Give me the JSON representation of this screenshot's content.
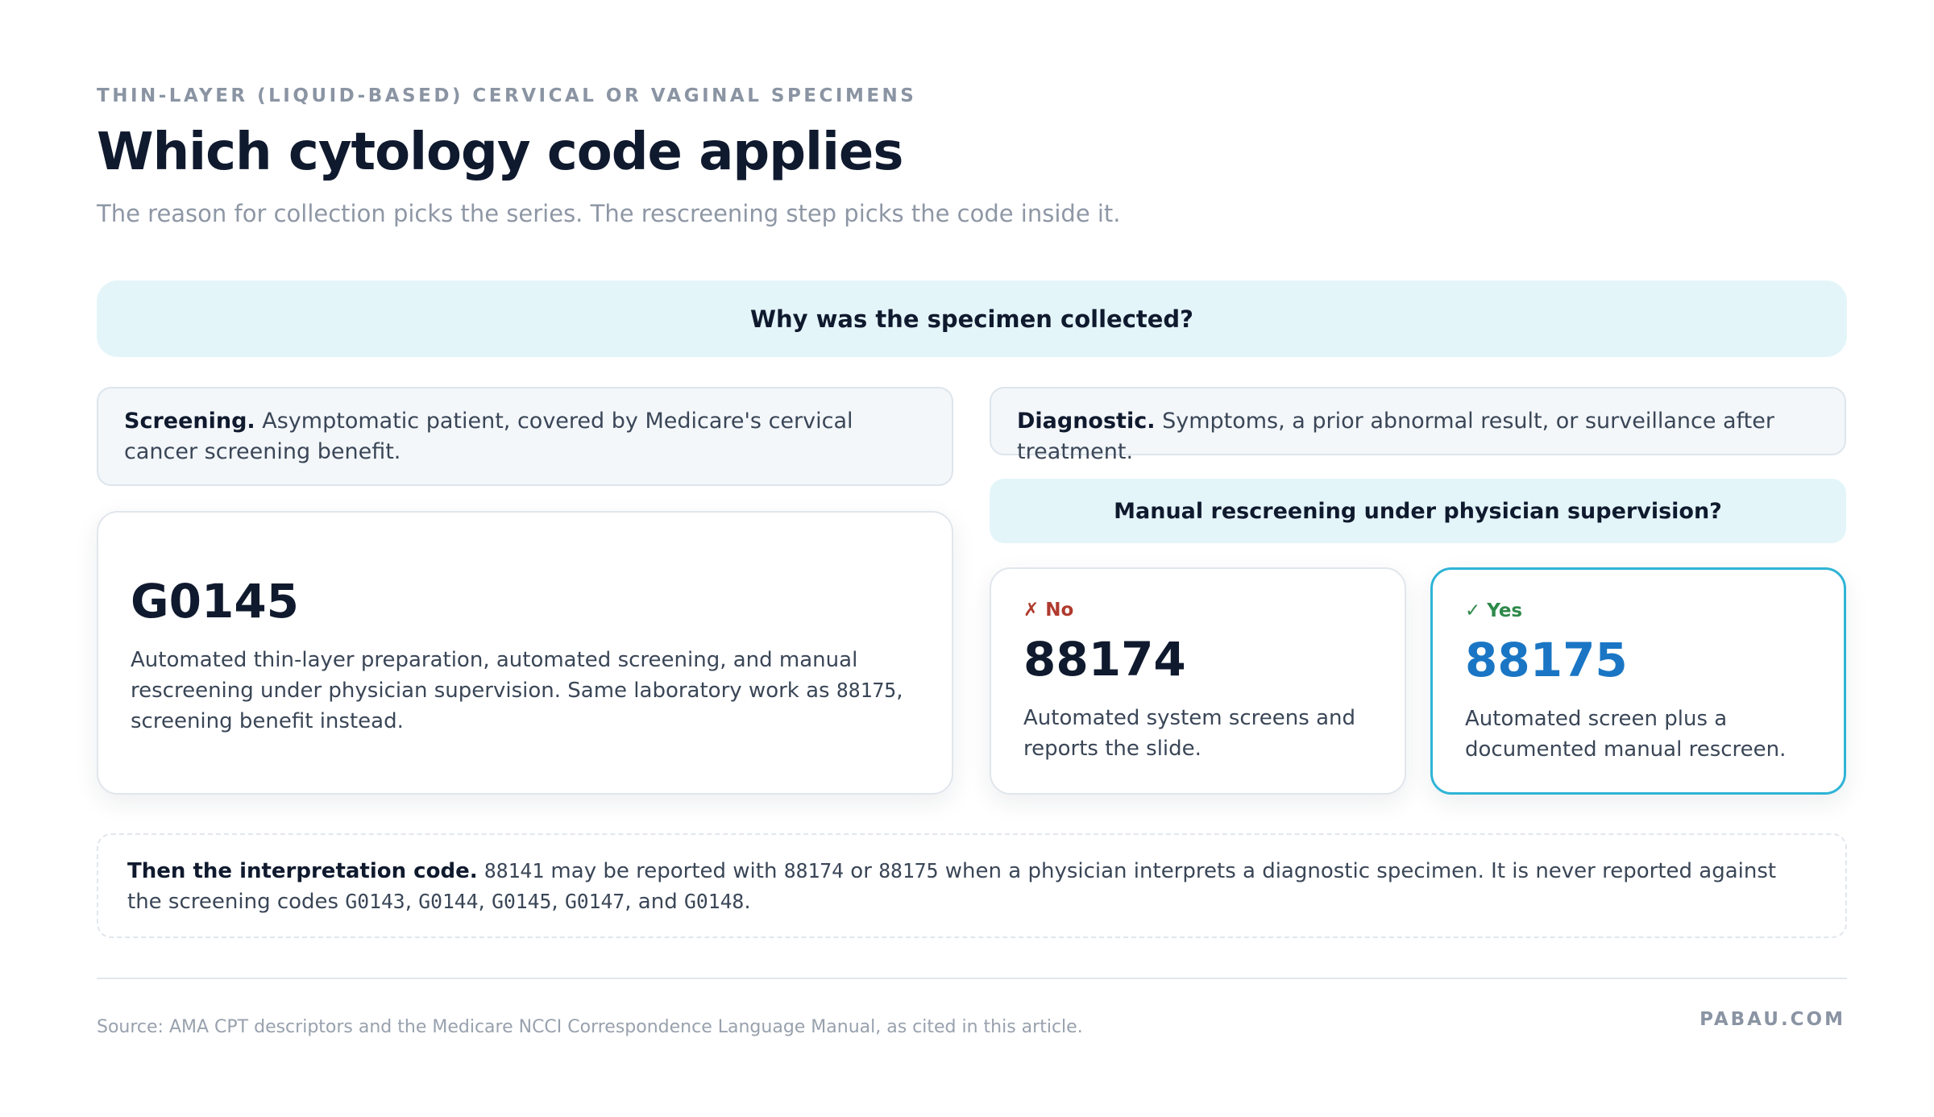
{
  "header": {
    "eyebrow": "THIN-LAYER (LIQUID-BASED) CERVICAL OR VAGINAL SPECIMENS",
    "title": "Which cytology code applies",
    "subtitle": "The reason for collection picks the series. The rescreening step picks the code inside it."
  },
  "question": "Why was the specimen collected?",
  "screening": {
    "label": "Screening.",
    "text": "Asymptomatic patient, covered by Medicare's cervical cancer screening benefit."
  },
  "diagnostic": {
    "label": "Diagnostic.",
    "text": "Symptoms, a prior abnormal result, or surveillance after treatment."
  },
  "question2": "Manual rescreening under physician supervision?",
  "screening_result": {
    "code": "G0145",
    "parts": [
      "Automated thin-layer preparation, automated screening, and manual rescreening under physician supervision. Same laboratory work as ",
      "88175",
      ", screening benefit instead."
    ]
  },
  "no": {
    "tag": "✗ No",
    "code": "88174",
    "text": "Automated system screens and reports the slide."
  },
  "yes": {
    "tag": "✓ Yes",
    "code": "88175",
    "text": "Automated screen plus a documented manual rescreen."
  },
  "note": {
    "label": "Then the interpretation code.",
    "parts": [
      "88141",
      " may be reported with ",
      "88174",
      " or ",
      "88175",
      " when a physician interprets a diagnostic specimen. It is never reported against the screening codes ",
      "G0143",
      ", ",
      "G0144",
      ", ",
      "G0145",
      ", ",
      "G0147",
      ", and ",
      "G0148",
      "."
    ]
  },
  "footer": {
    "source": "Source: AMA CPT descriptors and the Medicare NCCI Correspondence Language Manual, as cited in this article.",
    "brand": "PABAU.COM"
  }
}
